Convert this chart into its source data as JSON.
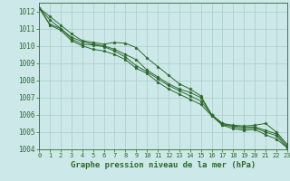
{
  "background_color": "#cce8e8",
  "grid_color": "#aacccc",
  "line_color": "#2d6a2d",
  "marker_color": "#2d6a2d",
  "xlabel": "Graphe pression niveau de la mer (hPa)",
  "xlabel_color": "#2d6a2d",
  "tick_color": "#2d6a2d",
  "ylim": [
    1004,
    1012.5
  ],
  "xlim": [
    0,
    23
  ],
  "yticks": [
    1004,
    1005,
    1006,
    1007,
    1008,
    1009,
    1010,
    1011,
    1012
  ],
  "xticks": [
    0,
    1,
    2,
    3,
    4,
    5,
    6,
    7,
    8,
    9,
    10,
    11,
    12,
    13,
    14,
    15,
    16,
    17,
    18,
    19,
    20,
    21,
    22,
    23
  ],
  "line1": [
    1012.2,
    1011.7,
    1011.2,
    1010.7,
    1010.3,
    1010.2,
    1010.1,
    1010.2,
    1010.15,
    1009.9,
    1009.3,
    1008.8,
    1008.3,
    1007.8,
    1007.5,
    1007.1,
    1006.0,
    1005.5,
    1005.4,
    1005.35,
    1005.4,
    1005.5,
    1005.0,
    1004.3
  ],
  "line2": [
    1012.2,
    1011.5,
    1011.0,
    1010.5,
    1010.25,
    1010.1,
    1010.0,
    1009.8,
    1009.5,
    1009.2,
    1008.6,
    1008.2,
    1007.8,
    1007.5,
    1007.3,
    1007.0,
    1006.0,
    1005.4,
    1005.35,
    1005.3,
    1005.3,
    1005.1,
    1004.9,
    1004.2
  ],
  "line3": [
    1012.2,
    1011.25,
    1011.0,
    1010.4,
    1010.1,
    1010.05,
    1009.95,
    1009.7,
    1009.35,
    1008.85,
    1008.5,
    1008.1,
    1007.7,
    1007.4,
    1007.1,
    1006.8,
    1006.0,
    1005.5,
    1005.3,
    1005.2,
    1005.25,
    1005.0,
    1004.8,
    1004.1
  ],
  "line4": [
    1012.2,
    1011.2,
    1010.9,
    1010.3,
    1010.0,
    1009.8,
    1009.7,
    1009.5,
    1009.2,
    1008.7,
    1008.4,
    1007.9,
    1007.5,
    1007.2,
    1006.9,
    1006.6,
    1005.95,
    1005.4,
    1005.2,
    1005.1,
    1005.15,
    1004.85,
    1004.6,
    1004.1
  ],
  "ytick_fontsize": 5.5,
  "xtick_fontsize": 5.0,
  "xlabel_fontsize": 6.5
}
